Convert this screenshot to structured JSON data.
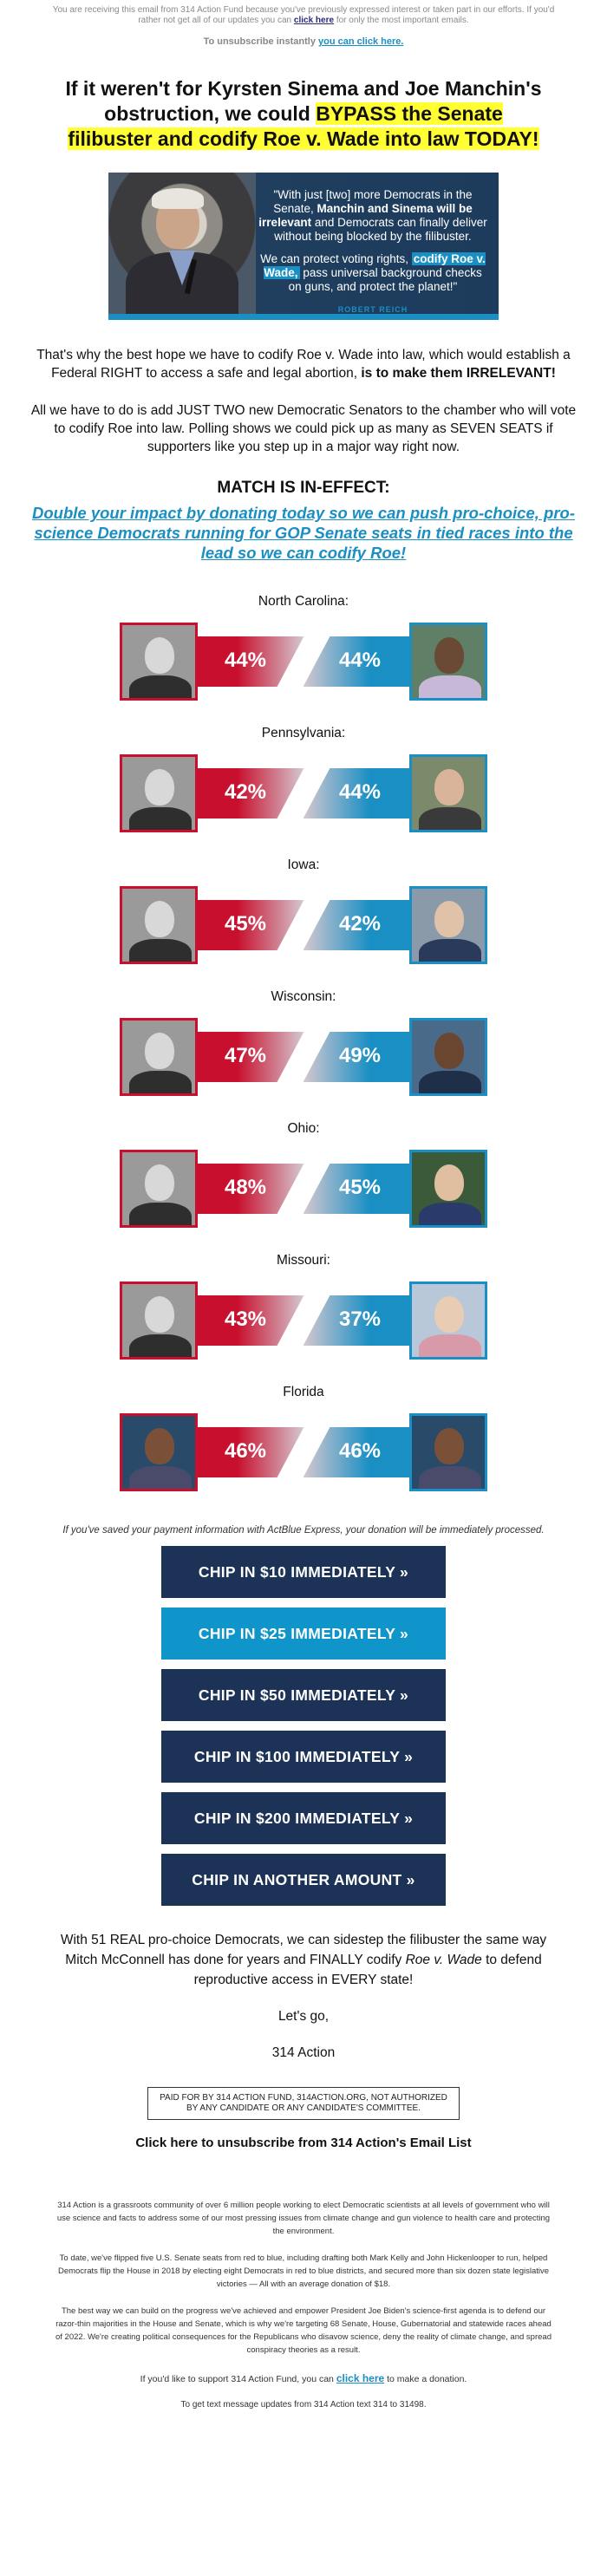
{
  "preheader": {
    "text": "You are receiving this email from 314 Action Fund because you've previously expressed interest or taken part in our efforts. If you'd rather not get all of our updates you can",
    "link": "click here",
    "after": "for only the most important emails."
  },
  "unsub_top": {
    "prefix": "To unsubscribe instantly",
    "link": "you can click here."
  },
  "headline": {
    "part1": "If it weren't for Kyrsten Sinema and Joe Manchin's obstruction, we could",
    "highlight": "BYPASS the Senate filibuster and codify Roe v. Wade into law TODAY!"
  },
  "hero": {
    "q1_a": "\"With just [two] more Democrats in the Senate,",
    "q1_b": "Manchin and Sinema will be irrelevant",
    "q1_c": "and Democrats can finally deliver without being blocked by the filibuster.",
    "q2_a": "We can protect voting rights,",
    "q2_b": "codify Roe v. Wade,",
    "q2_c": "pass universal background checks on guns, and protect the planet!\"",
    "signature": "ROBERT REICH"
  },
  "para1": {
    "text": "That's why the best hope we have to codify Roe v. Wade into law, which would establish a Federal RIGHT to access a safe and legal abortion,",
    "bold": "is to make them IRRELEVANT!"
  },
  "para2": "All we have to do is add JUST TWO new Democratic Senators to the chamber who will vote to codify Roe into law. Polling shows we could pick up as many as SEVEN SEATS if supporters like you step up in a major way right now.",
  "match": {
    "title": "MATCH IS IN-EFFECT:",
    "link": "Double your impact by donating today so we can push pro-choice, pro-science Democrats running for GOP Senate seats in tied races into the lead so we can codify Roe!"
  },
  "races": [
    {
      "state": "North Carolina:",
      "r_pct": "44%",
      "d_pct": "44%"
    },
    {
      "state": "Pennsylvania:",
      "r_pct": "42%",
      "d_pct": "44%"
    },
    {
      "state": "Iowa:",
      "r_pct": "45%",
      "d_pct": "42%"
    },
    {
      "state": "Wisconsin:",
      "r_pct": "47%",
      "d_pct": "49%"
    },
    {
      "state": "Ohio:",
      "r_pct": "48%",
      "d_pct": "45%"
    },
    {
      "state": "Missouri:",
      "r_pct": "43%",
      "d_pct": "37%"
    },
    {
      "state": "Florida",
      "r_pct": "46%",
      "d_pct": "46%"
    }
  ],
  "actblue_note": "If you've saved your payment information with ActBlue Express, your donation will be immediately processed.",
  "buttons": [
    "CHIP IN $10 IMMEDIATELY »",
    "CHIP IN $25 IMMEDIATELY »",
    "CHIP IN $50 IMMEDIATELY »",
    "CHIP IN $100 IMMEDIATELY »",
    "CHIP IN $200 IMMEDIATELY »",
    "CHIP IN ANOTHER AMOUNT »"
  ],
  "closing": {
    "a": "With 51 REAL pro-choice Democrats, we can sidestep the filibuster the same way Mitch McConnell has done for years and FINALLY codify",
    "i": "Roe v. Wade",
    "b": "to defend reproductive access in EVERY state!"
  },
  "letsgo": "Let's go,",
  "sender": "314 Action",
  "paidfor": "PAID FOR BY 314 ACTION FUND, 314ACTION.ORG, NOT AUTHORIZED BY ANY CANDIDATE OR ANY CANDIDATE'S COMMITTEE.",
  "unsub_bottom": "Click here to unsubscribe from 314 Action's Email List",
  "fine": {
    "f1": "314 Action is a grassroots community of over 6 million people working to elect Democratic scientists at all levels of government who will use science and facts to address some of our most pressing issues from climate change and gun violence to health care and protecting the environment.",
    "f2": "To date, we've flipped five U.S. Senate seats from red to blue, including drafting both Mark Kelly and John Hickenlooper to run, helped Democrats flip the House in 2018 by electing eight Democrats in red to blue districts, and secured more than six dozen state legislative victories — All with an average donation of $18.",
    "f3": "The best way we can build on the progress we've achieved and empower President Joe Biden's science-first agenda is to defend our razor-thin majorities in the House and Senate, which is why we're targeting 68 Senate, House, Gubernatorial and statewide races ahead of 2022. We're creating political consequences for the Republicans who disavow science, deny the reality of climate change, and spread conspiracy theories as a result.",
    "support_a": "If you'd like to support 314 Action Fund, you can",
    "support_link": "click here",
    "support_b": "to make a donation.",
    "sms": "To get text message updates from 314 Action text 314 to 31498."
  }
}
